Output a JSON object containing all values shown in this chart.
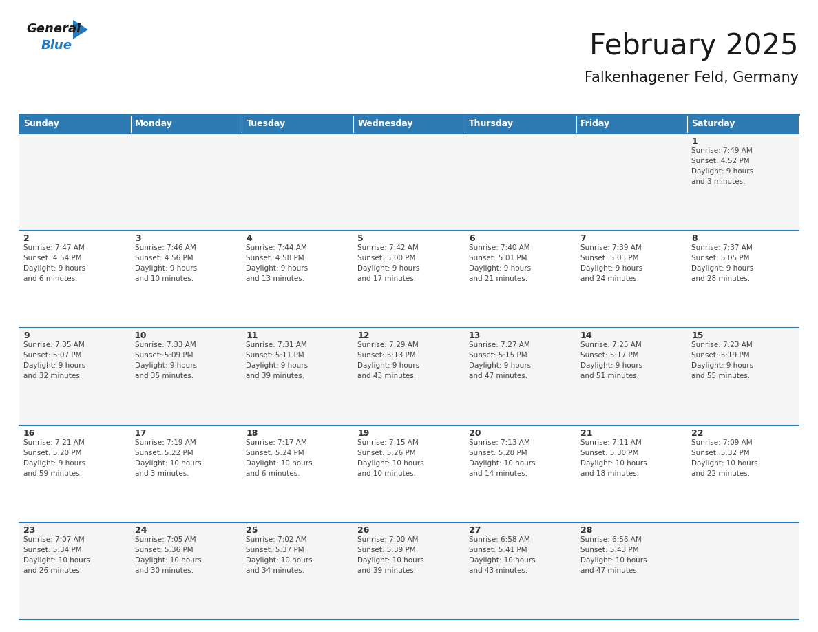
{
  "title": "February 2025",
  "subtitle": "Falkenhagener Feld, Germany",
  "header_bg": "#2E7BB4",
  "header_text": "#FFFFFF",
  "cell_bg_even": "#F5F5F5",
  "cell_bg_odd": "#FFFFFF",
  "border_color": "#2E7BB4",
  "text_dark": "#333333",
  "text_info": "#444444",
  "day_headers": [
    "Sunday",
    "Monday",
    "Tuesday",
    "Wednesday",
    "Thursday",
    "Friday",
    "Saturday"
  ],
  "weeks": [
    [
      {
        "day": "",
        "info": ""
      },
      {
        "day": "",
        "info": ""
      },
      {
        "day": "",
        "info": ""
      },
      {
        "day": "",
        "info": ""
      },
      {
        "day": "",
        "info": ""
      },
      {
        "day": "",
        "info": ""
      },
      {
        "day": "1",
        "info": "Sunrise: 7:49 AM\nSunset: 4:52 PM\nDaylight: 9 hours\nand 3 minutes."
      }
    ],
    [
      {
        "day": "2",
        "info": "Sunrise: 7:47 AM\nSunset: 4:54 PM\nDaylight: 9 hours\nand 6 minutes."
      },
      {
        "day": "3",
        "info": "Sunrise: 7:46 AM\nSunset: 4:56 PM\nDaylight: 9 hours\nand 10 minutes."
      },
      {
        "day": "4",
        "info": "Sunrise: 7:44 AM\nSunset: 4:58 PM\nDaylight: 9 hours\nand 13 minutes."
      },
      {
        "day": "5",
        "info": "Sunrise: 7:42 AM\nSunset: 5:00 PM\nDaylight: 9 hours\nand 17 minutes."
      },
      {
        "day": "6",
        "info": "Sunrise: 7:40 AM\nSunset: 5:01 PM\nDaylight: 9 hours\nand 21 minutes."
      },
      {
        "day": "7",
        "info": "Sunrise: 7:39 AM\nSunset: 5:03 PM\nDaylight: 9 hours\nand 24 minutes."
      },
      {
        "day": "8",
        "info": "Sunrise: 7:37 AM\nSunset: 5:05 PM\nDaylight: 9 hours\nand 28 minutes."
      }
    ],
    [
      {
        "day": "9",
        "info": "Sunrise: 7:35 AM\nSunset: 5:07 PM\nDaylight: 9 hours\nand 32 minutes."
      },
      {
        "day": "10",
        "info": "Sunrise: 7:33 AM\nSunset: 5:09 PM\nDaylight: 9 hours\nand 35 minutes."
      },
      {
        "day": "11",
        "info": "Sunrise: 7:31 AM\nSunset: 5:11 PM\nDaylight: 9 hours\nand 39 minutes."
      },
      {
        "day": "12",
        "info": "Sunrise: 7:29 AM\nSunset: 5:13 PM\nDaylight: 9 hours\nand 43 minutes."
      },
      {
        "day": "13",
        "info": "Sunrise: 7:27 AM\nSunset: 5:15 PM\nDaylight: 9 hours\nand 47 minutes."
      },
      {
        "day": "14",
        "info": "Sunrise: 7:25 AM\nSunset: 5:17 PM\nDaylight: 9 hours\nand 51 minutes."
      },
      {
        "day": "15",
        "info": "Sunrise: 7:23 AM\nSunset: 5:19 PM\nDaylight: 9 hours\nand 55 minutes."
      }
    ],
    [
      {
        "day": "16",
        "info": "Sunrise: 7:21 AM\nSunset: 5:20 PM\nDaylight: 9 hours\nand 59 minutes."
      },
      {
        "day": "17",
        "info": "Sunrise: 7:19 AM\nSunset: 5:22 PM\nDaylight: 10 hours\nand 3 minutes."
      },
      {
        "day": "18",
        "info": "Sunrise: 7:17 AM\nSunset: 5:24 PM\nDaylight: 10 hours\nand 6 minutes."
      },
      {
        "day": "19",
        "info": "Sunrise: 7:15 AM\nSunset: 5:26 PM\nDaylight: 10 hours\nand 10 minutes."
      },
      {
        "day": "20",
        "info": "Sunrise: 7:13 AM\nSunset: 5:28 PM\nDaylight: 10 hours\nand 14 minutes."
      },
      {
        "day": "21",
        "info": "Sunrise: 7:11 AM\nSunset: 5:30 PM\nDaylight: 10 hours\nand 18 minutes."
      },
      {
        "day": "22",
        "info": "Sunrise: 7:09 AM\nSunset: 5:32 PM\nDaylight: 10 hours\nand 22 minutes."
      }
    ],
    [
      {
        "day": "23",
        "info": "Sunrise: 7:07 AM\nSunset: 5:34 PM\nDaylight: 10 hours\nand 26 minutes."
      },
      {
        "day": "24",
        "info": "Sunrise: 7:05 AM\nSunset: 5:36 PM\nDaylight: 10 hours\nand 30 minutes."
      },
      {
        "day": "25",
        "info": "Sunrise: 7:02 AM\nSunset: 5:37 PM\nDaylight: 10 hours\nand 34 minutes."
      },
      {
        "day": "26",
        "info": "Sunrise: 7:00 AM\nSunset: 5:39 PM\nDaylight: 10 hours\nand 39 minutes."
      },
      {
        "day": "27",
        "info": "Sunrise: 6:58 AM\nSunset: 5:41 PM\nDaylight: 10 hours\nand 43 minutes."
      },
      {
        "day": "28",
        "info": "Sunrise: 6:56 AM\nSunset: 5:43 PM\nDaylight: 10 hours\nand 47 minutes."
      },
      {
        "day": "",
        "info": ""
      }
    ]
  ],
  "logo_general_color": "#1a1a1a",
  "logo_blue_color": "#2479BD",
  "logo_triangle_color": "#2479BD"
}
